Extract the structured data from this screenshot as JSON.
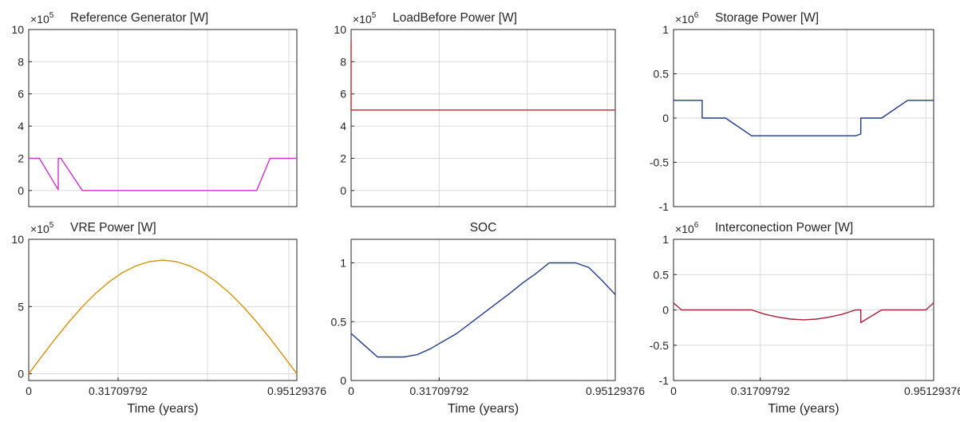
{
  "figure": {
    "x_ticks": [
      "0",
      "0.31709792",
      "0.95129376"
    ],
    "xlabel": "Time (years)"
  },
  "chart_data": [
    {
      "type": "line",
      "title": "Reference Generator [W]",
      "exponent": "5",
      "color": "#cc33cc",
      "xlim": [
        0,
        1
      ],
      "ylim": [
        -1,
        10
      ],
      "y_ticks": [
        0,
        2,
        4,
        6,
        8,
        10
      ],
      "grid": true,
      "x": [
        0,
        0.04,
        0.11,
        0.11,
        0.12,
        0.2,
        0.85,
        0.9,
        1.0
      ],
      "y": [
        2,
        2,
        0.05,
        2,
        2,
        0,
        0,
        2,
        2
      ]
    },
    {
      "type": "line",
      "title": "LoadBefore Power [W]",
      "exponent": "5",
      "color": "#cc2222",
      "xlim": [
        0,
        1
      ],
      "ylim": [
        -1,
        10
      ],
      "y_ticks": [
        0,
        2,
        4,
        6,
        8,
        10
      ],
      "grid": true,
      "x": [
        0,
        0,
        0.002,
        1.0
      ],
      "y": [
        9.3,
        5,
        5,
        5
      ]
    },
    {
      "type": "line",
      "title": "Storage Power [W]",
      "exponent": "6",
      "color": "#1f3b8a",
      "xlim": [
        0,
        1
      ],
      "ylim": [
        -1,
        1
      ],
      "y_ticks": [
        -1,
        -0.5,
        0,
        0.5,
        1
      ],
      "grid": true,
      "x": [
        0,
        0.11,
        0.11,
        0.2,
        0.3,
        0.7,
        0.72,
        0.72,
        0.8,
        0.9,
        1.0
      ],
      "y": [
        0.2,
        0.2,
        0,
        0,
        -0.2,
        -0.2,
        -0.18,
        0,
        0,
        0.2,
        0.2
      ]
    },
    {
      "type": "line",
      "title": "VRE Power [W]",
      "exponent": "5",
      "color": "#d4930e",
      "xlim": [
        0,
        1
      ],
      "ylim": [
        -0.5,
        10
      ],
      "y_ticks": [
        0,
        5,
        10
      ],
      "grid": true,
      "x": [
        0,
        0.05,
        0.1,
        0.15,
        0.2,
        0.25,
        0.3,
        0.35,
        0.4,
        0.45,
        0.5,
        0.55,
        0.6,
        0.65,
        0.7,
        0.75,
        0.8,
        0.85,
        0.9,
        0.95,
        1.0
      ],
      "y": [
        0,
        1.33,
        2.63,
        3.86,
        4.99,
        5.99,
        6.84,
        7.53,
        8.03,
        8.34,
        8.45,
        8.34,
        8.03,
        7.53,
        6.84,
        5.99,
        4.99,
        3.86,
        2.63,
        1.33,
        0
      ]
    },
    {
      "type": "line",
      "title": "SOC",
      "exponent": "",
      "color": "#1f3b8a",
      "xlim": [
        0,
        1
      ],
      "ylim": [
        0,
        1.2
      ],
      "y_ticks": [
        0,
        0.5,
        1
      ],
      "grid": true,
      "x": [
        0,
        0.05,
        0.1,
        0.15,
        0.2,
        0.25,
        0.3,
        0.4,
        0.5,
        0.6,
        0.65,
        0.7,
        0.75,
        0.8,
        0.85,
        0.9,
        0.95,
        1.0
      ],
      "y": [
        0.4,
        0.3,
        0.2,
        0.2,
        0.2,
        0.22,
        0.27,
        0.4,
        0.57,
        0.74,
        0.83,
        0.91,
        1.0,
        1.0,
        1.0,
        0.96,
        0.85,
        0.73
      ]
    },
    {
      "type": "line",
      "title": "Interconection Power [W]",
      "exponent": "6",
      "color": "#a8203a",
      "xlim": [
        0,
        1
      ],
      "ylim": [
        -1,
        1
      ],
      "y_ticks": [
        -1,
        -0.5,
        0,
        0.5,
        1
      ],
      "grid": true,
      "x": [
        0,
        0.03,
        0.3,
        0.35,
        0.4,
        0.45,
        0.5,
        0.55,
        0.6,
        0.65,
        0.7,
        0.72,
        0.72,
        0.8,
        0.97,
        1.0
      ],
      "y": [
        0.1,
        0,
        0,
        -0.06,
        -0.1,
        -0.13,
        -0.14,
        -0.13,
        -0.1,
        -0.06,
        0,
        0,
        -0.18,
        0,
        0,
        0.1
      ]
    }
  ]
}
